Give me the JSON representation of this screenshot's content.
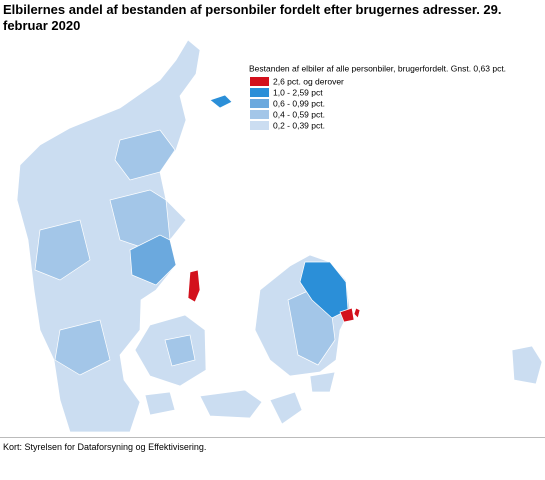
{
  "title": "Elbilernes andel af bestanden af personbiler fordelt efter brugernes adresser. 29. februar 2020",
  "legend": {
    "title": "Bestanden af elbiler af alle personbiler, brugerfordelt. Gnst. 0,63 pct.",
    "items": [
      {
        "label": "2,6 pct. og derover",
        "color": "#d3101c"
      },
      {
        "label": "1,0 - 2,59 pct",
        "color": "#2b8fd8"
      },
      {
        "label": "0,6 - 0,99 pct.",
        "color": "#6ba9de"
      },
      {
        "label": "0,4 - 0,59 pct.",
        "color": "#a3c6e8"
      },
      {
        "label": "0,2 - 0,39 pct.",
        "color": "#cbddf1"
      }
    ]
  },
  "source": "Kort: Styrelsen for Dataforsyning og Effektivisering."
}
